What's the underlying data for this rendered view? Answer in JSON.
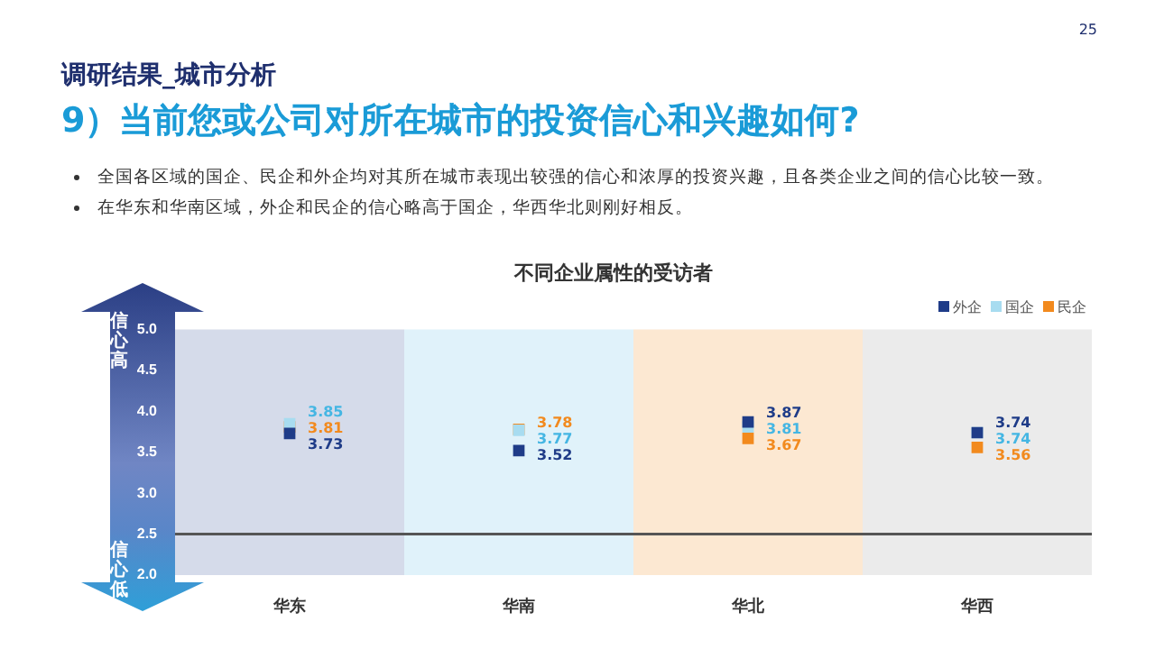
{
  "chart_data": {
    "type": "scatter",
    "subtitle": "调研结果_城市分析",
    "title": "9）当前您或公司对所在城市的投资信心和兴趣如何?",
    "annotations": [
      "全国各区域的国企、民企和外企均对其所在城市表现出较强的信心和浓厚的投资兴趣，且各类企业之间的信心比较一致。",
      "在华东和华南区域，外企和民企的信心略高于国企，华西华北则刚好相反。",
      "不同企业属性的受访者",
      "信心高",
      "信心低",
      "25"
    ],
    "categories": [
      "华东",
      "华南",
      "华北",
      "华西"
    ],
    "series": [
      {
        "name": "外企",
        "color": "#1f3c88",
        "values": [
          3.73,
          3.52,
          3.87,
          3.74
        ]
      },
      {
        "name": "国企",
        "color": "#a8dcf0",
        "values": [
          3.85,
          3.77,
          3.81,
          3.74
        ]
      },
      {
        "name": "民企",
        "color": "#f28a1e",
        "values": [
          3.81,
          3.78,
          3.67,
          3.56
        ]
      }
    ],
    "ylim": [
      2.0,
      5.0
    ],
    "yticks": [
      {
        "value": 2,
        "label": "2.0"
      },
      2.5,
      {
        "value": 3,
        "label": "3.0"
      },
      3.5,
      {
        "value": 4,
        "label": "4.0"
      },
      4.5,
      {
        "value": 5,
        "label": "5.0"
      }
    ],
    "bands": [
      {
        "axis": "x",
        "from": "华东",
        "to": "华东",
        "color": "#d5dbea"
      },
      {
        "axis": "x",
        "from": "华南",
        "to": "华南",
        "color": "#e0f2fa"
      },
      {
        "axis": "x",
        "from": "华北",
        "to": "华北",
        "color": "#fce8d2"
      },
      {
        "axis": "x",
        "from": "华西",
        "to": "华西",
        "color": "#ebebeb"
      }
    ],
    "ref_lines": [
      {
        "axis": "y",
        "value": 2.5,
        "color": "#555555"
      }
    ],
    "data_labels": true,
    "marker": "square",
    "grid": false,
    "legend": "top right"
  }
}
